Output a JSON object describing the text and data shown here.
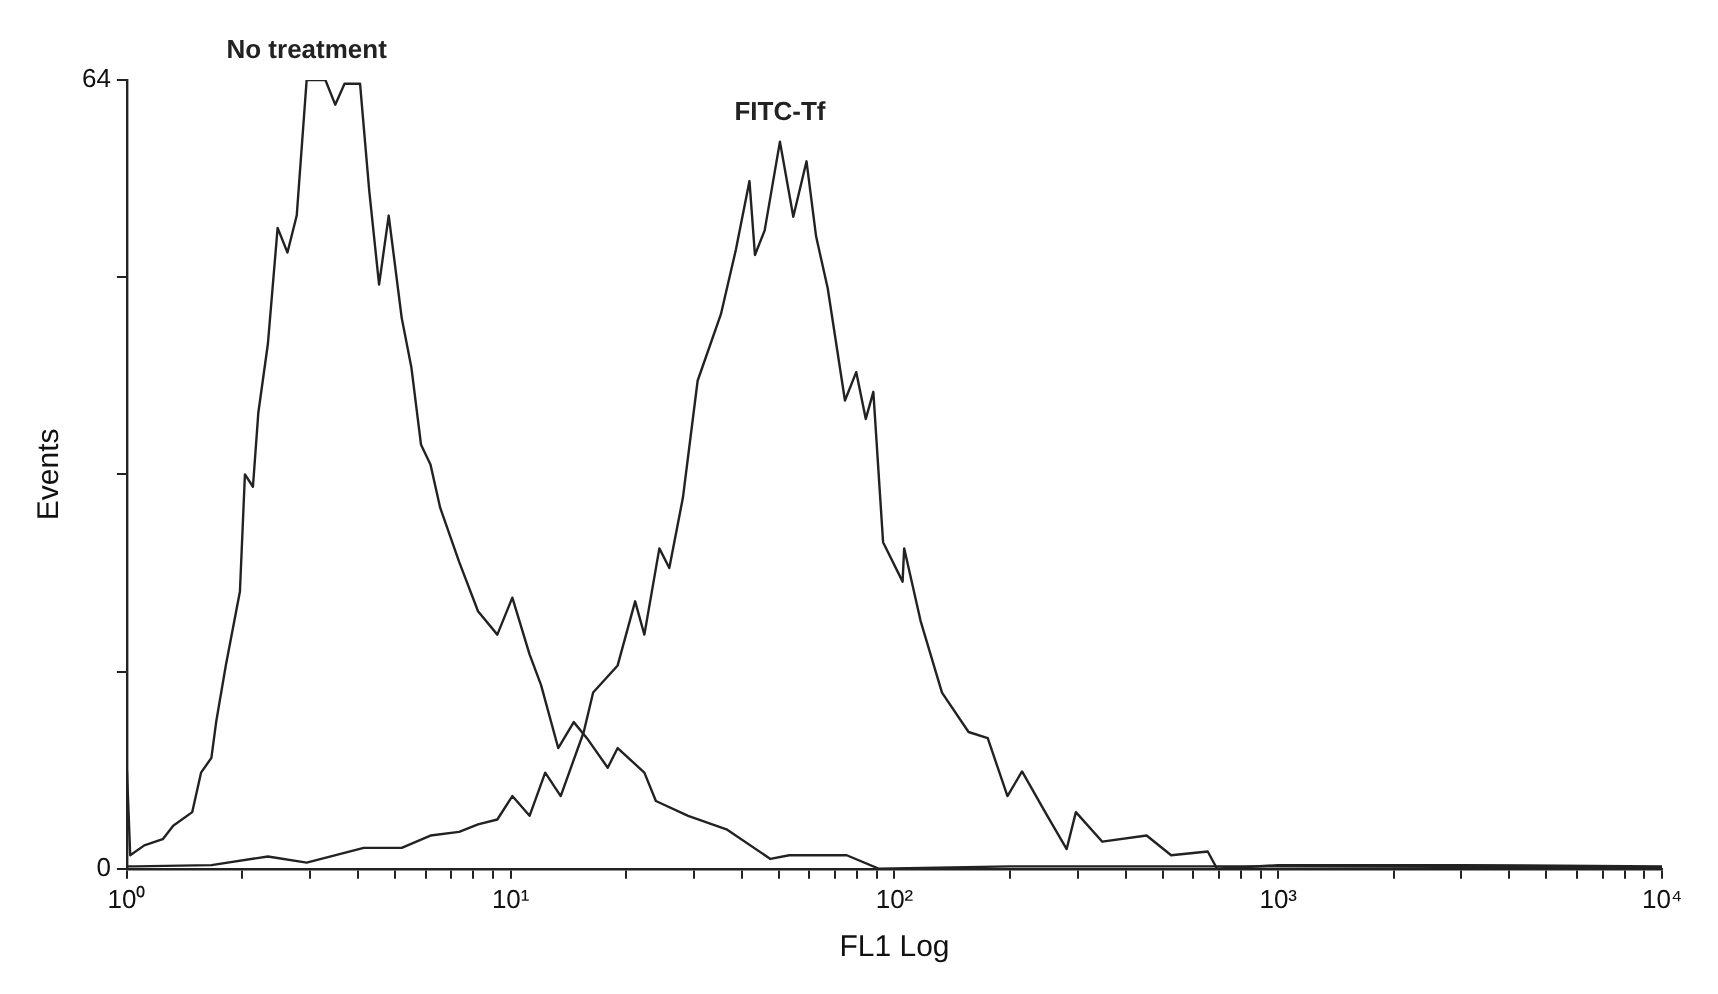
{
  "chart_data": {
    "type": "line",
    "xlabel": "FL1 Log",
    "ylabel": "Events",
    "log": "x",
    "legend": false,
    "marker": "none",
    "line_style": "solid",
    "xlim": [
      1,
      10000
    ],
    "ylim": [
      0,
      64
    ],
    "xticks": [
      {
        "value": 1,
        "label": "10⁰"
      },
      {
        "value": 2,
        "label": null
      },
      {
        "value": 3,
        "label": null
      },
      {
        "value": 4,
        "label": null
      },
      {
        "value": 5,
        "label": null
      },
      {
        "value": 6,
        "label": null
      },
      {
        "value": 7,
        "label": null
      },
      {
        "value": 8,
        "label": null
      },
      {
        "value": 9,
        "label": null
      },
      {
        "value": 10,
        "label": "10¹"
      },
      {
        "value": 20,
        "label": null
      },
      {
        "value": 30,
        "label": null
      },
      {
        "value": 40,
        "label": null
      },
      {
        "value": 50,
        "label": null
      },
      {
        "value": 60,
        "label": null
      },
      {
        "value": 70,
        "label": null
      },
      {
        "value": 80,
        "label": null
      },
      {
        "value": 90,
        "label": null
      },
      {
        "value": 100,
        "label": "10²"
      },
      {
        "value": 200,
        "label": null
      },
      {
        "value": 300,
        "label": null
      },
      {
        "value": 400,
        "label": null
      },
      {
        "value": 500,
        "label": null
      },
      {
        "value": 600,
        "label": null
      },
      {
        "value": 700,
        "label": null
      },
      {
        "value": 800,
        "label": null
      },
      {
        "value": 900,
        "label": null
      },
      {
        "value": 1000,
        "label": "10³"
      },
      {
        "value": 2000,
        "label": null
      },
      {
        "value": 3000,
        "label": null
      },
      {
        "value": 4000,
        "label": null
      },
      {
        "value": 5000,
        "label": null
      },
      {
        "value": 6000,
        "label": null
      },
      {
        "value": 7000,
        "label": null
      },
      {
        "value": 8000,
        "label": null
      },
      {
        "value": 9000,
        "label": null
      },
      {
        "value": 10000,
        "label": "10⁴"
      }
    ],
    "yticks": [
      0,
      {
        "value": 16,
        "label": null
      },
      {
        "value": 32,
        "label": null
      },
      {
        "value": 48,
        "label": null
      },
      64
    ],
    "series": [
      {
        "name": "No treatment",
        "color": "#222222",
        "x": [
          1,
          1.02,
          1.11,
          1.24,
          1.32,
          1.48,
          1.56,
          1.66,
          1.71,
          1.81,
          1.97,
          2.03,
          2.13,
          2.2,
          2.33,
          2.47,
          2.62,
          2.77,
          2.94,
          3.29,
          3.49,
          3.69,
          4.05,
          4.28,
          4.54,
          4.81,
          5.2,
          5.51,
          5.84,
          6.18,
          6.55,
          7.34,
          8.22,
          9.23,
          10.1,
          11.2,
          12,
          13.3,
          14.6,
          15.8,
          17.9,
          19,
          22.3,
          23.9,
          29,
          36.5,
          47.5,
          53.2,
          75.1,
          91.2,
          200,
          1000,
          10000
        ],
        "values": [
          8,
          1.1,
          1.9,
          2.4,
          3.5,
          4.6,
          7.8,
          9,
          12,
          16.5,
          22.5,
          32,
          31,
          37,
          42.6,
          52,
          50,
          53,
          64,
          64,
          62,
          63.7,
          63.7,
          55,
          47.4,
          53,
          44.7,
          40.7,
          34.4,
          32.8,
          29.3,
          24.9,
          20.9,
          19,
          22,
          17.4,
          14.9,
          9.8,
          11.9,
          10.6,
          8.2,
          9.8,
          7.8,
          5.5,
          4.3,
          3.2,
          0.8,
          1.1,
          1.1,
          0,
          0.2,
          0.2,
          0.1
        ]
      },
      {
        "name": "FITC-Tf",
        "color": "#222222",
        "x": [
          1,
          1.05,
          1.66,
          2.33,
          2.94,
          4.14,
          5.2,
          6.18,
          7.34,
          8.22,
          9.23,
          10.1,
          11.2,
          12.3,
          13.5,
          15.5,
          16.4,
          19,
          21.1,
          22.3,
          24.4,
          25.9,
          28.1,
          30.7,
          35.3,
          38.6,
          41.9,
          43.3,
          45.9,
          50.3,
          54.5,
          59,
          62.5,
          67,
          74.3,
          79.5,
          84.2,
          88.1,
          93.4,
          105,
          106,
          117,
          133,
          156,
          175,
          197,
          215,
          247,
          281,
          297,
          348,
          454,
          526,
          655,
          693,
          1000,
          3000,
          10000
        ],
        "values": [
          0.2,
          0.2,
          0.3,
          1,
          0.5,
          1.7,
          1.7,
          2.7,
          3,
          3.6,
          4,
          5.9,
          4.3,
          7.8,
          5.9,
          11.1,
          14.3,
          16.5,
          21.7,
          19,
          26,
          24.4,
          30.1,
          39.6,
          45,
          50.2,
          55.8,
          49.8,
          51.8,
          59,
          52.9,
          57.4,
          51.3,
          47.1,
          38,
          40.3,
          36.5,
          38.7,
          26.5,
          23.3,
          26,
          20.1,
          14.3,
          11.1,
          10.6,
          5.9,
          7.9,
          4.6,
          1.6,
          4.6,
          2.2,
          2.7,
          1.1,
          1.4,
          0,
          0.3,
          0.3,
          0.2
        ]
      }
    ]
  }
}
